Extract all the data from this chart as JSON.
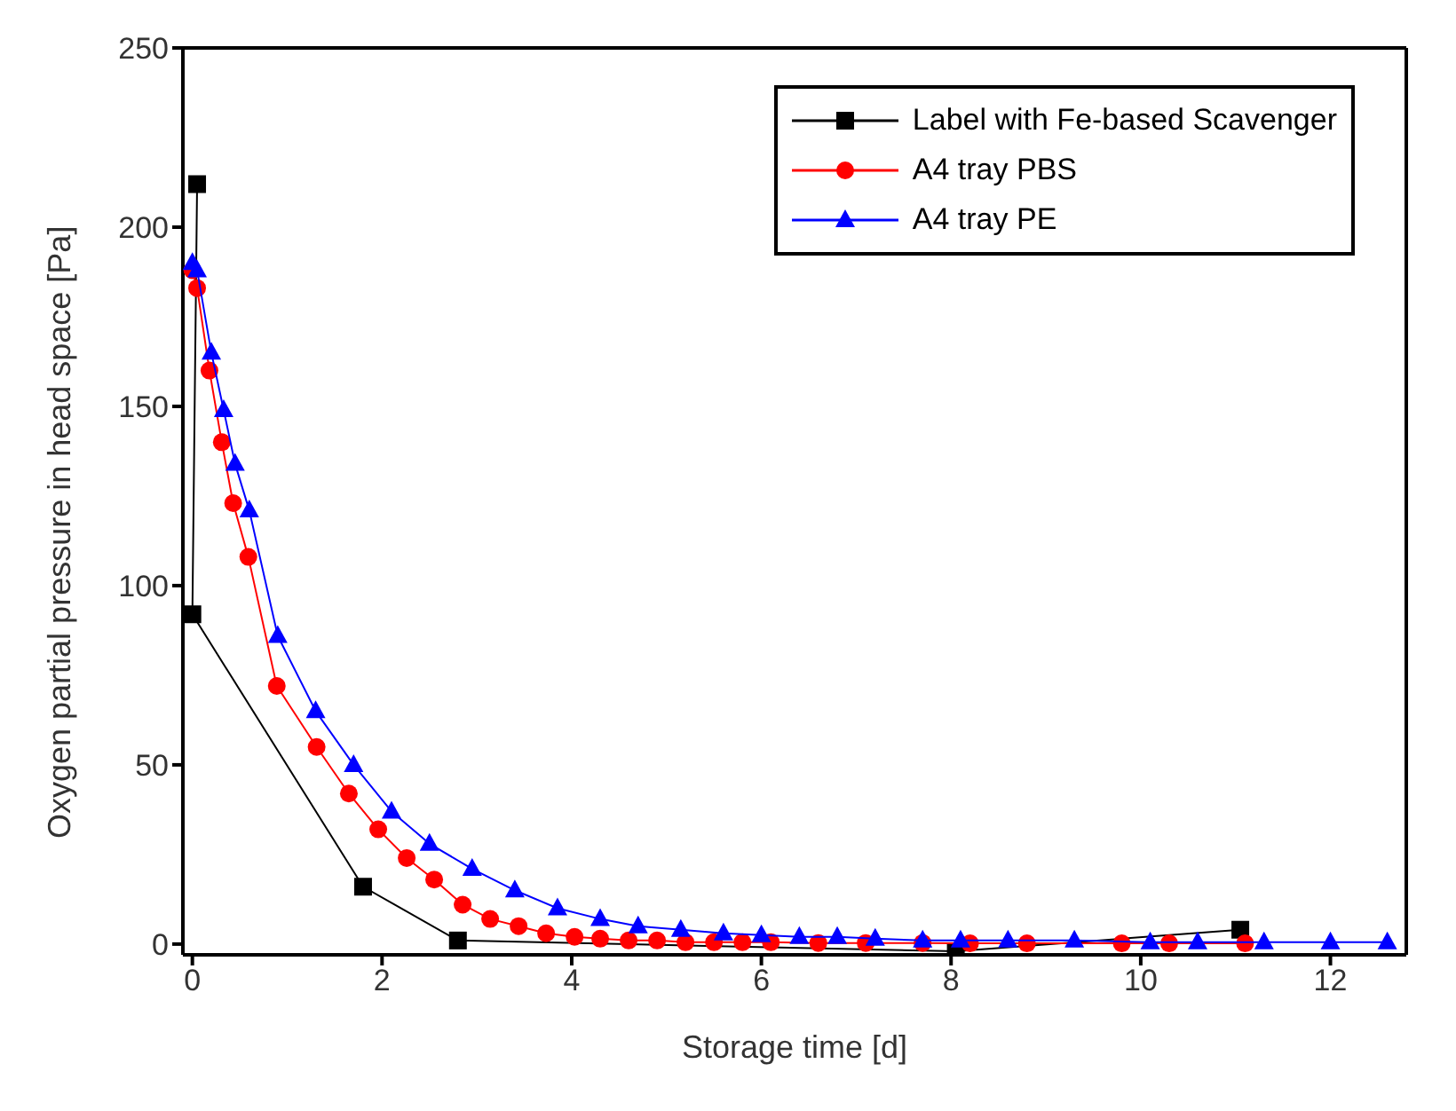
{
  "chart_data": {
    "type": "line",
    "xlabel": "Storage time [d]",
    "ylabel": "Oxygen partial pressure in head space [Pa]",
    "xlim": [
      -0.1,
      12.8
    ],
    "xticks": [
      0,
      2,
      4,
      6,
      8,
      10,
      12
    ],
    "ylim": [
      -3,
      250
    ],
    "yticks": [
      0,
      50,
      100,
      150,
      200,
      250
    ],
    "legend": "top right",
    "line_style": "solid",
    "series": [
      {
        "name": "Label with Fe-based Scavenger",
        "color": "#000000",
        "marker": "square",
        "x": [
          0.05,
          0,
          1.8,
          2.8,
          8.05,
          11.05
        ],
        "values": [
          212,
          92,
          16,
          1,
          -2,
          4
        ]
      },
      {
        "name": "A4 tray PBS",
        "color": "#ff0000",
        "marker": "circle",
        "x": [
          0,
          0.05,
          0.18,
          0.31,
          0.43,
          0.59,
          0.89,
          1.31,
          1.65,
          1.96,
          2.26,
          2.55,
          2.85,
          3.14,
          3.44,
          3.73,
          4.03,
          4.3,
          4.6,
          4.9,
          5.2,
          5.5,
          5.8,
          6.1,
          6.6,
          7.1,
          7.7,
          8.2,
          8.8,
          9.8,
          10.3,
          11.1
        ],
        "values": [
          188,
          183,
          160,
          140,
          123,
          108,
          72,
          55,
          42,
          32,
          24,
          18,
          11,
          7,
          5,
          3,
          2,
          1.5,
          1,
          1,
          0.5,
          0.5,
          0.5,
          0.5,
          0.3,
          0.3,
          0.3,
          0.2,
          0.2,
          0.2,
          0.2,
          0.2
        ]
      },
      {
        "name": "A4 tray PE",
        "color": "#0000ff",
        "marker": "triangle",
        "x": [
          0,
          0.05,
          0.2,
          0.33,
          0.45,
          0.6,
          0.9,
          1.3,
          1.7,
          2.1,
          2.5,
          2.95,
          3.4,
          3.85,
          4.3,
          4.7,
          5.15,
          5.6,
          6.0,
          6.4,
          6.8,
          7.2,
          7.7,
          8.1,
          8.6,
          9.3,
          10.1,
          10.6,
          11.3,
          12,
          12.6
        ],
        "values": [
          190,
          188,
          165,
          149,
          134,
          121,
          86,
          65,
          50,
          37,
          28,
          21,
          15,
          10,
          7,
          5,
          4,
          3,
          2.5,
          2,
          2,
          1.5,
          1,
          1,
          1,
          1,
          0.5,
          0.5,
          0.5,
          0.5,
          0.5
        ]
      }
    ]
  }
}
